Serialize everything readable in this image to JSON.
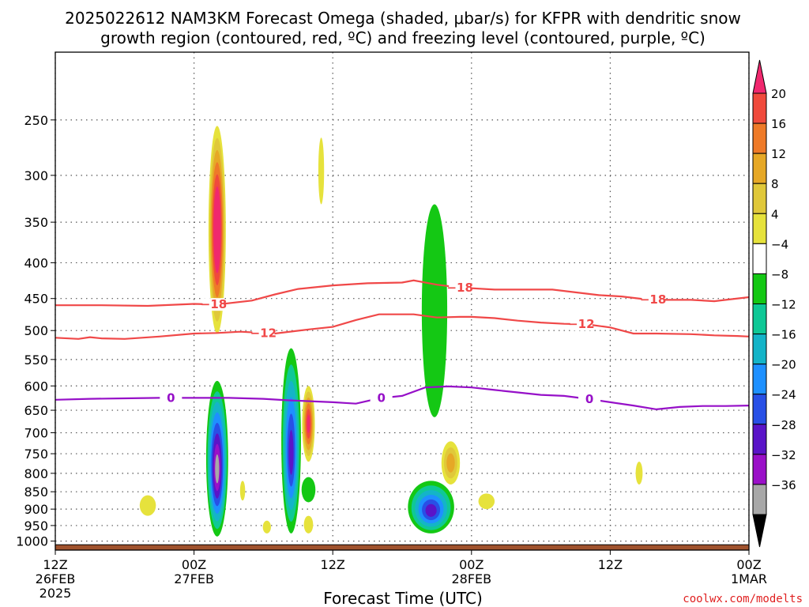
{
  "chart_data": {
    "type": "heatmap",
    "title": "2025022612 NAM3KM Forecast Omega (shaded, μbar/s) for KFPR with dendritic snow growth region (contoured, red, ºC) and freezing level (contoured, purple, ºC)",
    "title_lines": [
      "2025022612 NAM3KM Forecast Omega (shaded, μbar/s) for KFPR with dendritic snow",
      "growth region (contoured, red, ºC) and freezing level (contoured, purple, ºC)"
    ],
    "xlabel": "Forecast Time (UTC)",
    "xlim": [
      0,
      60
    ],
    "x_ticks": [
      {
        "x": 0,
        "lines": [
          "12Z",
          "26FEB",
          "2025"
        ]
      },
      {
        "x": 12,
        "lines": [
          "00Z",
          "27FEB"
        ]
      },
      {
        "x": 24,
        "lines": [
          "12Z"
        ]
      },
      {
        "x": 36,
        "lines": [
          "00Z",
          "28FEB"
        ]
      },
      {
        "x": 48,
        "lines": [
          "12Z"
        ]
      },
      {
        "x": 60,
        "lines": [
          "00Z",
          "1MAR"
        ]
      }
    ],
    "ylabel": "",
    "y_scale": "log-pressure",
    "ylim": [
      1030,
      200
    ],
    "y_ticks": [
      250,
      300,
      350,
      400,
      450,
      500,
      550,
      600,
      650,
      700,
      750,
      800,
      850,
      900,
      950,
      1000
    ],
    "ground_pressure": 1012,
    "colorbar": {
      "labels": [
        "20",
        "16",
        "12",
        "8",
        "4",
        "−4",
        "−8",
        "−12",
        "−16",
        "−20",
        "−24",
        "−28",
        "−32",
        "−36"
      ],
      "colors": [
        "#f0286e",
        "#f04a3c",
        "#ee7a28",
        "#e6a826",
        "#e0c83a",
        "#e6e23c",
        "#ffffff",
        "#14c814",
        "#0fc896",
        "#14b4c8",
        "#1e90ff",
        "#2850e6",
        "#5a14c8",
        "#9a10c8",
        "#a8a8a8",
        "#000000"
      ]
    },
    "contours": [
      {
        "name": "-18",
        "color": "#f04848",
        "labels": [
          {
            "x": 13.7,
            "text": "−18"
          },
          {
            "x": 35.0,
            "text": "−18"
          },
          {
            "x": 51.7,
            "text": "−18"
          }
        ],
        "points": [
          [
            0,
            460
          ],
          [
            4,
            460
          ],
          [
            8,
            461
          ],
          [
            12,
            458
          ],
          [
            14,
            459
          ],
          [
            17,
            453
          ],
          [
            19,
            444
          ],
          [
            21,
            436
          ],
          [
            24,
            431
          ],
          [
            27,
            428
          ],
          [
            30,
            427
          ],
          [
            31,
            424
          ],
          [
            33,
            430
          ],
          [
            35,
            434
          ],
          [
            38,
            437
          ],
          [
            40,
            437
          ],
          [
            43,
            437
          ],
          [
            45,
            441
          ],
          [
            47,
            445
          ],
          [
            49,
            447
          ],
          [
            51,
            451
          ],
          [
            53,
            452
          ],
          [
            55,
            452
          ],
          [
            57,
            454
          ],
          [
            58,
            452
          ],
          [
            60,
            448
          ]
        ]
      },
      {
        "name": "-12",
        "color": "#f04848",
        "labels": [
          {
            "x": 18.0,
            "text": "−12"
          },
          {
            "x": 45.5,
            "text": "−12"
          }
        ],
        "points": [
          [
            0,
            512
          ],
          [
            2,
            514
          ],
          [
            3,
            511
          ],
          [
            4,
            513
          ],
          [
            6,
            514
          ],
          [
            9,
            510
          ],
          [
            12,
            505
          ],
          [
            14,
            504
          ],
          [
            16,
            502
          ],
          [
            19,
            505
          ],
          [
            22,
            498
          ],
          [
            24,
            494
          ],
          [
            26,
            483
          ],
          [
            28,
            474
          ],
          [
            31,
            474
          ],
          [
            33,
            479
          ],
          [
            35,
            478
          ],
          [
            36,
            478
          ],
          [
            38,
            480
          ],
          [
            40,
            484
          ],
          [
            42,
            487
          ],
          [
            44,
            489
          ],
          [
            46,
            490
          ],
          [
            48,
            495
          ],
          [
            50,
            505
          ],
          [
            52,
            505
          ],
          [
            55,
            506
          ],
          [
            57,
            508
          ],
          [
            59,
            509
          ],
          [
            60,
            510
          ]
        ]
      },
      {
        "name": "0",
        "color": "#9610c8",
        "labels": [
          {
            "x": 10.0,
            "text": "0"
          },
          {
            "x": 28.2,
            "text": "0"
          },
          {
            "x": 46.2,
            "text": "0"
          }
        ],
        "points": [
          [
            0,
            628
          ],
          [
            3,
            626
          ],
          [
            6,
            625
          ],
          [
            9,
            624
          ],
          [
            12,
            624
          ],
          [
            15,
            624
          ],
          [
            18,
            626
          ],
          [
            20,
            629
          ],
          [
            22,
            631
          ],
          [
            24,
            633
          ],
          [
            26,
            636
          ],
          [
            28,
            625
          ],
          [
            30,
            620
          ],
          [
            32,
            603
          ],
          [
            34,
            601
          ],
          [
            36,
            603
          ],
          [
            38,
            608
          ],
          [
            40,
            613
          ],
          [
            42,
            618
          ],
          [
            44,
            620
          ],
          [
            46,
            626
          ],
          [
            48,
            633
          ],
          [
            50,
            640
          ],
          [
            52,
            648
          ],
          [
            54,
            643
          ],
          [
            56,
            641
          ],
          [
            58,
            641
          ],
          [
            60,
            640
          ]
        ]
      }
    ],
    "omega_regions": [
      {
        "cx": 14.0,
        "p_top": 590,
        "p_bot": 985,
        "width": 0.95,
        "min_level": 8
      },
      {
        "cx": 14.0,
        "p_top": 255,
        "p_bot": 505,
        "width": 0.75,
        "max_level": 8
      },
      {
        "cx": 20.4,
        "p_top": 530,
        "p_bot": 975,
        "width": 0.85,
        "min_level": 6
      },
      {
        "cx": 21.9,
        "p_top": 810,
        "p_bot": 880,
        "width": 0.6,
        "min_level": 1
      },
      {
        "cx": 21.9,
        "p_top": 600,
        "p_bot": 770,
        "width": 0.55,
        "max_level": 6
      },
      {
        "cx": 23.0,
        "p_top": 265,
        "p_bot": 330,
        "width": 0.25,
        "max_level": 1
      },
      {
        "cx": 21.9,
        "p_top": 920,
        "p_bot": 975,
        "width": 0.4,
        "max_level": 1
      },
      {
        "cx": 18.3,
        "p_top": 935,
        "p_bot": 975,
        "width": 0.35,
        "max_level": 1
      },
      {
        "cx": 16.2,
        "p_top": 820,
        "p_bot": 875,
        "width": 0.22,
        "max_level": 1
      },
      {
        "cx": 8.0,
        "p_top": 860,
        "p_bot": 920,
        "width": 0.7,
        "max_level": 1
      },
      {
        "cx": 32.8,
        "p_top": 330,
        "p_bot": 665,
        "width": 1.1,
        "min_level": 1
      },
      {
        "cx": 32.5,
        "p_top": 820,
        "p_bot": 975,
        "width": 2.0,
        "min_level": 6
      },
      {
        "cx": 34.2,
        "p_top": 720,
        "p_bot": 830,
        "width": 0.8,
        "max_level": 3
      },
      {
        "cx": 37.3,
        "p_top": 855,
        "p_bot": 900,
        "width": 0.7,
        "max_level": 1
      },
      {
        "cx": 50.5,
        "p_top": 770,
        "p_bot": 830,
        "width": 0.3,
        "max_level": 1
      }
    ]
  },
  "credit": "coolwx.com/modelts"
}
